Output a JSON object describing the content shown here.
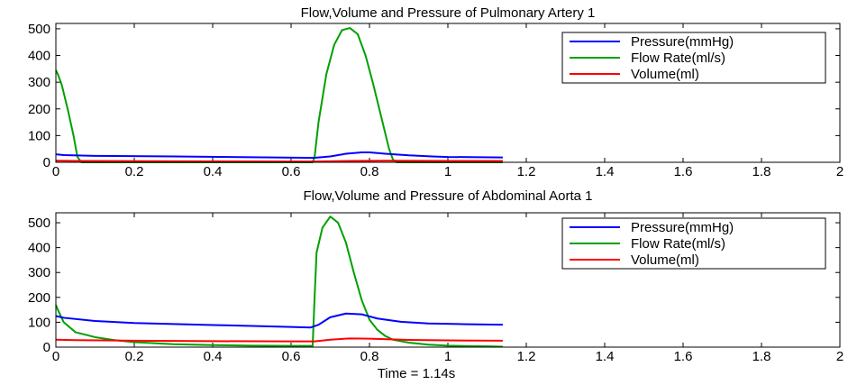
{
  "chart_data": [
    {
      "type": "line",
      "title": "Flow,Volume and Pressure of Pulmonary Artery 1",
      "xlabel": "",
      "ylabel": "",
      "xlim": [
        0,
        2
      ],
      "ylim": [
        0,
        520
      ],
      "xticks": [
        0,
        0.2,
        0.4,
        0.6,
        0.8,
        1,
        1.2,
        1.4,
        1.6,
        1.8,
        2
      ],
      "xtick_labels": [
        "0",
        "0.2",
        "0.4",
        "0.6",
        "0.8",
        "1",
        "1.2",
        "1.4",
        "1.6",
        "1.8",
        "2"
      ],
      "yticks": [
        0,
        100,
        200,
        300,
        400,
        500
      ],
      "ytick_labels": [
        "0",
        "100",
        "200",
        "300",
        "400",
        "500"
      ],
      "grid": false,
      "legend_position": "top-right",
      "series": [
        {
          "name": "Pressure(mmHg)",
          "color": "#0000ff",
          "x": [
            0,
            0.02,
            0.1,
            0.3,
            0.5,
            0.64,
            0.66,
            0.7,
            0.74,
            0.78,
            0.8,
            0.84,
            0.9,
            0.96,
            1.0,
            1.14
          ],
          "y": [
            30,
            27,
            24,
            22,
            19,
            17,
            17,
            22,
            32,
            37,
            37,
            32,
            26,
            22,
            20,
            18
          ]
        },
        {
          "name": "Flow Rate(ml/s)",
          "color": "#00a000",
          "x": [
            0,
            0.005,
            0.015,
            0.03,
            0.045,
            0.055,
            0.065,
            0.1,
            0.4,
            0.655,
            0.66,
            0.67,
            0.69,
            0.71,
            0.73,
            0.75,
            0.77,
            0.79,
            0.81,
            0.83,
            0.85,
            0.86,
            0.87,
            1.14
          ],
          "y": [
            345,
            330,
            290,
            200,
            100,
            20,
            0,
            0,
            0,
            0,
            20,
            150,
            330,
            440,
            495,
            503,
            480,
            400,
            290,
            170,
            50,
            10,
            0,
            0
          ]
        },
        {
          "name": "Volume(ml)",
          "color": "#ff0000",
          "x": [
            0,
            0.05,
            0.3,
            0.6,
            0.66,
            0.75,
            0.85,
            1.0,
            1.14
          ],
          "y": [
            6,
            5,
            4,
            3,
            3,
            5,
            6,
            5,
            5
          ]
        }
      ]
    },
    {
      "type": "line",
      "title": "Flow,Volume and Pressure of Abdominal Aorta 1",
      "xlabel": "Time = 1.14s",
      "ylabel": "",
      "xlim": [
        0,
        2
      ],
      "ylim": [
        0,
        540
      ],
      "xticks": [
        0,
        0.2,
        0.4,
        0.6,
        0.8,
        1,
        1.2,
        1.4,
        1.6,
        1.8,
        2
      ],
      "xtick_labels": [
        "0",
        "0.2",
        "0.4",
        "0.6",
        "0.8",
        "1",
        "1.2",
        "1.4",
        "1.6",
        "1.8",
        "2"
      ],
      "yticks": [
        0,
        100,
        200,
        300,
        400,
        500
      ],
      "ytick_labels": [
        "0",
        "100",
        "200",
        "300",
        "400",
        "500"
      ],
      "grid": false,
      "legend_position": "top-right",
      "series": [
        {
          "name": "Pressure(mmHg)",
          "color": "#0000ff",
          "x": [
            0,
            0.02,
            0.1,
            0.2,
            0.3,
            0.4,
            0.5,
            0.6,
            0.65,
            0.67,
            0.7,
            0.74,
            0.78,
            0.82,
            0.88,
            0.95,
            1.05,
            1.14
          ],
          "y": [
            125,
            118,
            105,
            97,
            93,
            89,
            85,
            81,
            79,
            90,
            120,
            135,
            132,
            115,
            102,
            95,
            92,
            90
          ]
        },
        {
          "name": "Flow Rate(ml/s)",
          "color": "#00a000",
          "x": [
            0,
            0.005,
            0.02,
            0.05,
            0.1,
            0.15,
            0.2,
            0.3,
            0.4,
            0.5,
            0.6,
            0.655,
            0.66,
            0.665,
            0.68,
            0.7,
            0.72,
            0.74,
            0.76,
            0.78,
            0.8,
            0.82,
            0.84,
            0.86,
            0.9,
            0.95,
            1.0,
            1.05,
            1.1,
            1.14
          ],
          "y": [
            170,
            150,
            100,
            60,
            40,
            28,
            20,
            12,
            8,
            6,
            5,
            5,
            200,
            380,
            480,
            525,
            500,
            420,
            300,
            190,
            110,
            70,
            45,
            30,
            18,
            10,
            6,
            4,
            3,
            2
          ]
        },
        {
          "name": "Volume(ml)",
          "color": "#ff0000",
          "x": [
            0,
            0.05,
            0.2,
            0.4,
            0.6,
            0.66,
            0.7,
            0.75,
            0.8,
            0.9,
            1.0,
            1.14
          ],
          "y": [
            30,
            28,
            26,
            24,
            23,
            23,
            30,
            35,
            34,
            29,
            27,
            26
          ]
        }
      ]
    }
  ]
}
